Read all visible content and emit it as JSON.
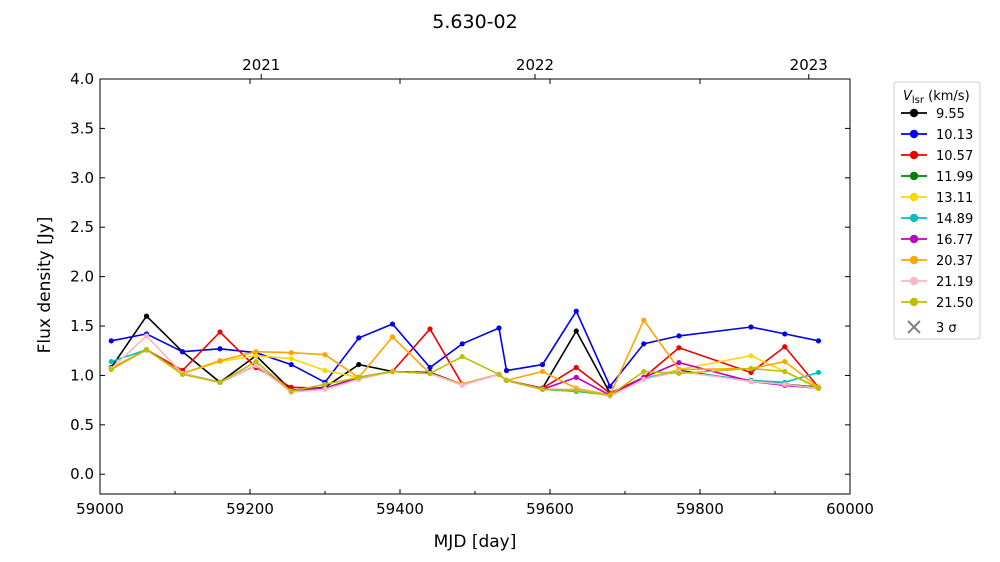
{
  "chart_data": {
    "type": "line",
    "title": "5.630-02",
    "xlabel": "MJD [day]",
    "ylabel": "Flux density [Jy]",
    "xlim": [
      59000,
      60000
    ],
    "ylim": [
      -0.2,
      4.0
    ],
    "xticks": [
      59000,
      59200,
      59400,
      59600,
      59800,
      60000
    ],
    "yticks": [
      0.0,
      0.5,
      1.0,
      1.5,
      2.0,
      2.5,
      3.0,
      3.5,
      4.0
    ],
    "top_axis_ticks": [
      {
        "label": "2021",
        "mjd": 59215
      },
      {
        "label": "2022",
        "mjd": 59580
      },
      {
        "label": "2023",
        "mjd": 59945
      }
    ],
    "grid": false,
    "legend": {
      "title_main": "V",
      "title_sub": "lsr",
      "title_unit": " (km/s)",
      "placement": "outside-right"
    },
    "threshold_label": "3 σ",
    "threshold_color": "#808080",
    "x": [
      59015,
      59062,
      59110,
      59160,
      59208,
      59255,
      59300,
      59345,
      59390,
      59440,
      59483,
      59532,
      59542,
      59590,
      59635,
      59680,
      59725,
      59772,
      59868,
      59913,
      59958
    ],
    "series": [
      {
        "name": "9.55",
        "color": "#000000",
        "values": [
          1.08,
          1.6,
          1.24,
          0.93,
          1.2,
          0.85,
          0.88,
          1.11,
          1.04,
          1.03,
          0.91,
          1.01,
          0.95,
          0.87,
          1.45,
          0.82,
          0.97,
          1.05,
          0.94,
          0.91,
          0.88
        ]
      },
      {
        "name": "10.13",
        "color": "#0000ee",
        "values": [
          1.35,
          1.42,
          1.24,
          1.27,
          1.23,
          1.11,
          0.93,
          1.38,
          1.52,
          1.08,
          1.32,
          1.48,
          1.05,
          1.11,
          1.65,
          0.89,
          1.32,
          1.4,
          1.49,
          1.42,
          1.35
        ]
      },
      {
        "name": "10.57",
        "color": "#ee0000",
        "values": [
          1.07,
          1.26,
          1.05,
          1.44,
          1.08,
          0.88,
          0.87,
          0.98,
          1.04,
          1.47,
          0.91,
          1.01,
          0.95,
          0.87,
          1.08,
          0.82,
          0.98,
          1.28,
          1.03,
          1.29,
          0.88
        ]
      },
      {
        "name": "11.99",
        "color": "#008000",
        "values": [
          1.07,
          1.26,
          1.02,
          0.93,
          1.1,
          0.84,
          0.87,
          0.98,
          1.04,
          1.02,
          0.91,
          1.01,
          0.95,
          0.86,
          0.84,
          0.8,
          0.97,
          1.04,
          0.95,
          0.91,
          0.88
        ]
      },
      {
        "name": "13.11",
        "color": "#ffd700",
        "values": [
          1.07,
          1.26,
          1.02,
          1.14,
          1.2,
          1.17,
          1.05,
          0.98,
          1.04,
          1.02,
          0.91,
          1.01,
          0.95,
          0.86,
          0.84,
          0.8,
          0.97,
          1.06,
          1.2,
          1.04,
          0.88
        ]
      },
      {
        "name": "14.89",
        "color": "#00bfbf",
        "values": [
          1.14,
          1.26,
          1.02,
          0.93,
          1.1,
          0.84,
          0.87,
          0.98,
          1.04,
          1.02,
          0.91,
          1.01,
          0.95,
          0.86,
          0.84,
          0.8,
          0.97,
          1.04,
          0.95,
          0.93,
          1.03
        ]
      },
      {
        "name": "16.77",
        "color": "#bf00bf",
        "values": [
          1.07,
          1.26,
          1.02,
          0.93,
          1.1,
          0.84,
          0.87,
          0.98,
          1.04,
          1.02,
          0.91,
          1.01,
          0.95,
          0.86,
          0.98,
          0.8,
          0.98,
          1.13,
          0.94,
          0.9,
          0.87
        ]
      },
      {
        "name": "20.37",
        "color": "#ffa500",
        "values": [
          1.07,
          1.26,
          1.02,
          1.15,
          1.24,
          1.23,
          1.21,
          0.98,
          1.39,
          1.02,
          0.91,
          1.01,
          0.95,
          1.04,
          0.87,
          0.8,
          1.56,
          1.06,
          1.07,
          1.14,
          0.88
        ]
      },
      {
        "name": "21.19",
        "color": "#ffb6c1",
        "values": [
          1.07,
          1.4,
          1.02,
          0.93,
          1.1,
          0.83,
          0.86,
          0.96,
          1.04,
          1.02,
          0.9,
          1.01,
          0.95,
          0.86,
          0.86,
          0.79,
          0.96,
          1.04,
          0.94,
          0.91,
          0.87
        ]
      },
      {
        "name": "21.50",
        "color": "#bfbf00",
        "values": [
          1.06,
          1.26,
          1.01,
          0.93,
          1.14,
          0.84,
          0.91,
          0.98,
          1.04,
          1.02,
          1.19,
          1.01,
          0.95,
          0.86,
          0.85,
          0.8,
          1.04,
          1.02,
          1.07,
          1.04,
          0.87
        ]
      }
    ]
  }
}
